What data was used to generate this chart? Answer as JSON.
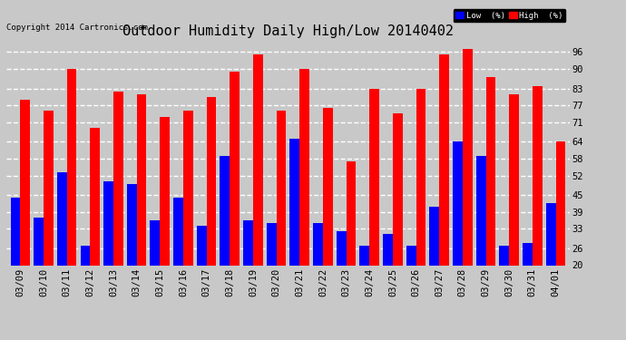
{
  "title": "Outdoor Humidity Daily High/Low 20140402",
  "copyright": "Copyright 2014 Cartronics.com",
  "legend_low": "Low  (%)",
  "legend_high": "High  (%)",
  "dates": [
    "03/09",
    "03/10",
    "03/11",
    "03/12",
    "03/13",
    "03/14",
    "03/15",
    "03/16",
    "03/17",
    "03/18",
    "03/19",
    "03/20",
    "03/21",
    "03/22",
    "03/23",
    "03/24",
    "03/25",
    "03/26",
    "03/27",
    "03/28",
    "03/29",
    "03/30",
    "03/31",
    "04/01"
  ],
  "high": [
    79,
    75,
    90,
    69,
    82,
    81,
    73,
    75,
    80,
    89,
    95,
    75,
    90,
    76,
    57,
    83,
    74,
    83,
    95,
    97,
    87,
    81,
    84,
    64
  ],
  "low": [
    44,
    37,
    53,
    27,
    50,
    49,
    36,
    44,
    34,
    59,
    36,
    35,
    65,
    35,
    32,
    27,
    31,
    27,
    41,
    64,
    59,
    27,
    28,
    42
  ],
  "ylim": [
    20,
    100
  ],
  "yticks": [
    20,
    26,
    33,
    39,
    45,
    52,
    58,
    64,
    71,
    77,
    83,
    90,
    96
  ],
  "bg_color": "#c8c8c8",
  "plot_bg": "#c8c8c8",
  "bar_color_high": "#ff0000",
  "bar_color_low": "#0000ff",
  "grid_color": "#ffffff",
  "title_fontsize": 11,
  "tick_fontsize": 7.5,
  "bar_width": 0.42
}
